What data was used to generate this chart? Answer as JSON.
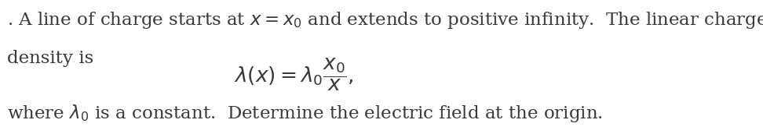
{
  "line1": ". A line of charge starts at $x = x_0$ and extends to positive infinity.  The linear charge",
  "line2": "density is",
  "line3": "$\\lambda\\left(x\\right) = \\lambda_0\\dfrac{x_0}{x},$",
  "line4": "where $\\lambda_0$ is a constant.  Determine the electric field at the origin.",
  "text_color": "#3a3a3a",
  "bg_color": "#ffffff",
  "fontsize": 16.5,
  "math_fontsize": 19
}
